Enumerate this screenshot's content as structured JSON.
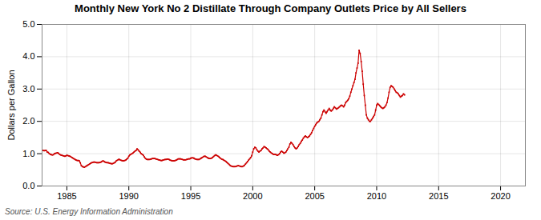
{
  "chart_data": {
    "type": "line",
    "title": "Monthly New York No 2 Distillate Through Company Outlets Price by All Sellers",
    "ylabel": "Dollars per Gallon",
    "annotations": [
      "Source: U.S. Energy Information Administration"
    ],
    "color": "#cc0000",
    "marker": "square",
    "line_style": "solid",
    "grid": true,
    "xlim": [
      1983,
      2022
    ],
    "ylim": [
      0.0,
      5.0
    ],
    "xticks": [
      1985,
      1990,
      1995,
      2000,
      2005,
      2010,
      2015,
      2020
    ],
    "yticks": [
      {
        "value": 0.0,
        "label": "0.0"
      },
      {
        "value": 1.0,
        "label": "1.0"
      },
      {
        "value": 2.0,
        "label": "2.0"
      },
      {
        "value": 3.0,
        "label": "3.0"
      },
      {
        "value": 4.0,
        "label": "4.0"
      },
      {
        "value": 5.0,
        "label": "5.0"
      }
    ],
    "x": [
      1983.0,
      1983.083,
      1983.167,
      1983.25,
      1983.333,
      1983.417,
      1983.5,
      1983.583,
      1983.667,
      1983.75,
      1983.833,
      1983.917,
      1984.0,
      1984.083,
      1984.167,
      1984.25,
      1984.333,
      1984.417,
      1984.5,
      1984.583,
      1984.667,
      1984.75,
      1984.833,
      1984.917,
      1985.0,
      1985.083,
      1985.167,
      1985.25,
      1985.333,
      1985.417,
      1985.5,
      1985.583,
      1985.667,
      1985.75,
      1985.833,
      1985.917,
      1986.0,
      1986.083,
      1986.167,
      1986.25,
      1986.333,
      1986.417,
      1986.5,
      1986.583,
      1986.667,
      1986.75,
      1986.833,
      1986.917,
      1987.0,
      1987.083,
      1987.167,
      1987.25,
      1987.333,
      1987.417,
      1987.5,
      1987.583,
      1987.667,
      1987.75,
      1987.833,
      1987.917,
      1988.0,
      1988.083,
      1988.167,
      1988.25,
      1988.333,
      1988.417,
      1988.5,
      1988.583,
      1988.667,
      1988.75,
      1988.833,
      1988.917,
      1989.0,
      1989.083,
      1989.167,
      1989.25,
      1989.333,
      1989.417,
      1989.5,
      1989.583,
      1989.667,
      1989.75,
      1989.833,
      1989.917,
      1990.0,
      1990.083,
      1990.167,
      1990.25,
      1990.333,
      1990.417,
      1990.5,
      1990.583,
      1990.667,
      1990.75,
      1990.833,
      1990.917,
      1991.0,
      1991.083,
      1991.167,
      1991.25,
      1991.333,
      1991.417,
      1991.5,
      1991.583,
      1991.667,
      1991.75,
      1991.833,
      1991.917,
      1992.0,
      1992.083,
      1992.167,
      1992.25,
      1992.333,
      1992.417,
      1992.5,
      1992.583,
      1992.667,
      1992.75,
      1992.833,
      1992.917,
      1993.0,
      1993.083,
      1993.167,
      1993.25,
      1993.333,
      1993.417,
      1993.5,
      1993.583,
      1993.667,
      1993.75,
      1993.833,
      1993.917,
      1994.0,
      1994.083,
      1994.167,
      1994.25,
      1994.333,
      1994.417,
      1994.5,
      1994.583,
      1994.667,
      1994.75,
      1994.833,
      1994.917,
      1995.0,
      1995.083,
      1995.167,
      1995.25,
      1995.333,
      1995.417,
      1995.5,
      1995.583,
      1995.667,
      1995.75,
      1995.833,
      1995.917,
      1996.0,
      1996.083,
      1996.167,
      1996.25,
      1996.333,
      1996.417,
      1996.5,
      1996.583,
      1996.667,
      1996.75,
      1996.833,
      1996.917,
      1997.0,
      1997.083,
      1997.167,
      1997.25,
      1997.333,
      1997.417,
      1997.5,
      1997.583,
      1997.667,
      1997.75,
      1997.833,
      1997.917,
      1998.0,
      1998.083,
      1998.167,
      1998.25,
      1998.333,
      1998.417,
      1998.5,
      1998.583,
      1998.667,
      1998.75,
      1998.833,
      1998.917,
      1999.0,
      1999.083,
      1999.167,
      1999.25,
      1999.333,
      1999.417,
      1999.5,
      1999.583,
      1999.667,
      1999.75,
      1999.833,
      1999.917,
      2000.0,
      2000.083,
      2000.167,
      2000.25,
      2000.333,
      2000.417,
      2000.5,
      2000.583,
      2000.667,
      2000.75,
      2000.833,
      2000.917,
      2001.0,
      2001.083,
      2001.167,
      2001.25,
      2001.333,
      2001.417,
      2001.5,
      2001.583,
      2001.667,
      2001.75,
      2001.833,
      2001.917,
      2002.0,
      2002.083,
      2002.167,
      2002.25,
      2002.333,
      2002.417,
      2002.5,
      2002.583,
      2002.667,
      2002.75,
      2002.833,
      2002.917,
      2003.0,
      2003.083,
      2003.167,
      2003.25,
      2003.333,
      2003.417,
      2003.5,
      2003.583,
      2003.667,
      2003.75,
      2003.833,
      2003.917,
      2004.0,
      2004.083,
      2004.167,
      2004.25,
      2004.333,
      2004.417,
      2004.5,
      2004.583,
      2004.667,
      2004.75,
      2004.833,
      2004.917,
      2005.0,
      2005.083,
      2005.167,
      2005.25,
      2005.333,
      2005.417,
      2005.5,
      2005.583,
      2005.667,
      2005.75,
      2005.833,
      2005.917,
      2006.0,
      2006.083,
      2006.167,
      2006.25,
      2006.333,
      2006.417,
      2006.5,
      2006.583,
      2006.667,
      2006.75,
      2006.833,
      2006.917,
      2007.0,
      2007.083,
      2007.167,
      2007.25,
      2007.333,
      2007.417,
      2007.5,
      2007.583,
      2007.667,
      2007.75,
      2007.833,
      2007.917,
      2008.0,
      2008.083,
      2008.167,
      2008.25,
      2008.333,
      2008.417,
      2008.5,
      2008.583,
      2008.667,
      2008.75,
      2008.833,
      2008.917,
      2009.0,
      2009.083,
      2009.167,
      2009.25,
      2009.333,
      2009.417,
      2009.5,
      2009.583,
      2009.667,
      2009.75,
      2009.833,
      2009.917,
      2010.0,
      2010.083,
      2010.167,
      2010.25,
      2010.333,
      2010.417,
      2010.5,
      2010.583,
      2010.667,
      2010.75,
      2010.833,
      2010.917,
      2011.0,
      2011.083,
      2011.167,
      2011.25,
      2011.333,
      2011.417,
      2011.5,
      2011.583,
      2011.667,
      2011.75,
      2011.833,
      2011.917,
      2012.0,
      2012.083,
      2012.167,
      2012.25
    ],
    "values": [
      1.1,
      1.1,
      1.09,
      1.1,
      1.1,
      1.05,
      1.04,
      1.0,
      0.98,
      0.97,
      0.96,
      0.97,
      1.0,
      1.01,
      1.02,
      1.03,
      1.01,
      0.98,
      0.96,
      0.95,
      0.94,
      0.93,
      0.92,
      0.93,
      0.95,
      0.94,
      0.93,
      0.92,
      0.9,
      0.88,
      0.86,
      0.84,
      0.82,
      0.8,
      0.79,
      0.79,
      0.78,
      0.72,
      0.63,
      0.6,
      0.59,
      0.58,
      0.6,
      0.62,
      0.64,
      0.66,
      0.68,
      0.7,
      0.72,
      0.73,
      0.74,
      0.74,
      0.73,
      0.72,
      0.72,
      0.72,
      0.73,
      0.74,
      0.76,
      0.78,
      0.76,
      0.74,
      0.73,
      0.72,
      0.72,
      0.71,
      0.7,
      0.69,
      0.69,
      0.7,
      0.72,
      0.74,
      0.78,
      0.8,
      0.82,
      0.82,
      0.8,
      0.79,
      0.78,
      0.78,
      0.79,
      0.8,
      0.83,
      0.86,
      0.92,
      0.96,
      0.98,
      1.0,
      1.02,
      1.05,
      1.08,
      1.1,
      1.15,
      1.12,
      1.08,
      1.04,
      1.0,
      0.98,
      0.95,
      0.9,
      0.86,
      0.83,
      0.82,
      0.82,
      0.82,
      0.83,
      0.84,
      0.85,
      0.85,
      0.85,
      0.84,
      0.83,
      0.82,
      0.81,
      0.8,
      0.79,
      0.79,
      0.8,
      0.81,
      0.82,
      0.82,
      0.83,
      0.83,
      0.82,
      0.8,
      0.79,
      0.78,
      0.78,
      0.78,
      0.79,
      0.8,
      0.82,
      0.84,
      0.84,
      0.84,
      0.83,
      0.82,
      0.81,
      0.81,
      0.81,
      0.82,
      0.83,
      0.84,
      0.84,
      0.86,
      0.87,
      0.87,
      0.86,
      0.84,
      0.83,
      0.82,
      0.82,
      0.82,
      0.84,
      0.86,
      0.88,
      0.9,
      0.92,
      0.92,
      0.9,
      0.88,
      0.86,
      0.85,
      0.85,
      0.86,
      0.88,
      0.91,
      0.94,
      0.96,
      0.95,
      0.93,
      0.91,
      0.88,
      0.85,
      0.83,
      0.82,
      0.8,
      0.78,
      0.76,
      0.73,
      0.7,
      0.67,
      0.64,
      0.62,
      0.61,
      0.6,
      0.6,
      0.6,
      0.61,
      0.62,
      0.63,
      0.62,
      0.61,
      0.6,
      0.6,
      0.62,
      0.64,
      0.68,
      0.72,
      0.76,
      0.8,
      0.84,
      0.88,
      0.94,
      1.05,
      1.15,
      1.2,
      1.18,
      1.12,
      1.08,
      1.05,
      1.08,
      1.1,
      1.15,
      1.18,
      1.22,
      1.2,
      1.18,
      1.15,
      1.12,
      1.08,
      1.05,
      1.02,
      1.0,
      0.98,
      0.98,
      0.98,
      0.96,
      0.95,
      0.97,
      1.0,
      1.05,
      1.08,
      1.05,
      1.02,
      1.02,
      1.05,
      1.1,
      1.15,
      1.2,
      1.3,
      1.35,
      1.32,
      1.28,
      1.22,
      1.18,
      1.15,
      1.18,
      1.22,
      1.28,
      1.32,
      1.38,
      1.42,
      1.48,
      1.52,
      1.55,
      1.52,
      1.5,
      1.52,
      1.55,
      1.6,
      1.65,
      1.72,
      1.78,
      1.85,
      1.9,
      1.95,
      1.98,
      2.0,
      2.05,
      2.1,
      2.2,
      2.3,
      2.35,
      2.3,
      2.25,
      2.3,
      2.35,
      2.4,
      2.35,
      2.32,
      2.35,
      2.4,
      2.45,
      2.42,
      2.38,
      2.4,
      2.42,
      2.45,
      2.48,
      2.5,
      2.48,
      2.45,
      2.5,
      2.58,
      2.62,
      2.65,
      2.7,
      2.78,
      2.9,
      3.0,
      3.1,
      3.2,
      3.3,
      3.5,
      3.65,
      3.8,
      4.2,
      4.1,
      3.85,
      3.55,
      3.15,
      2.8,
      2.5,
      2.2,
      2.1,
      2.05,
      2.0,
      2.0,
      2.05,
      2.1,
      2.15,
      2.2,
      2.35,
      2.5,
      2.55,
      2.52,
      2.48,
      2.45,
      2.42,
      2.4,
      2.42,
      2.45,
      2.5,
      2.58,
      2.72,
      2.9,
      3.05,
      3.1,
      3.08,
      3.05,
      3.0,
      2.95,
      2.9,
      2.88,
      2.85,
      2.8,
      2.75,
      2.78,
      2.8,
      2.85,
      2.82
    ]
  }
}
